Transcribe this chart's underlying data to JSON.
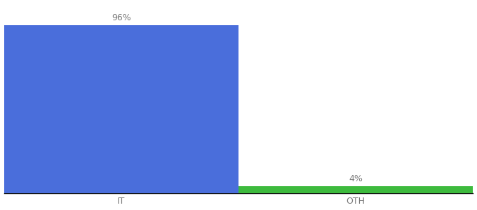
{
  "categories": [
    "IT",
    "OTH"
  ],
  "values": [
    96,
    4
  ],
  "bar_colors": [
    "#4a6edb",
    "#3dba3d"
  ],
  "labels": [
    "96%",
    "4%"
  ],
  "background_color": "#ffffff",
  "bar_width": 0.5,
  "x_positions": [
    0.25,
    0.75
  ],
  "xlim": [
    0.0,
    1.0
  ],
  "ylim": [
    0,
    108
  ],
  "label_fontsize": 9,
  "tick_fontsize": 9,
  "tick_color": "#7a7a7a"
}
